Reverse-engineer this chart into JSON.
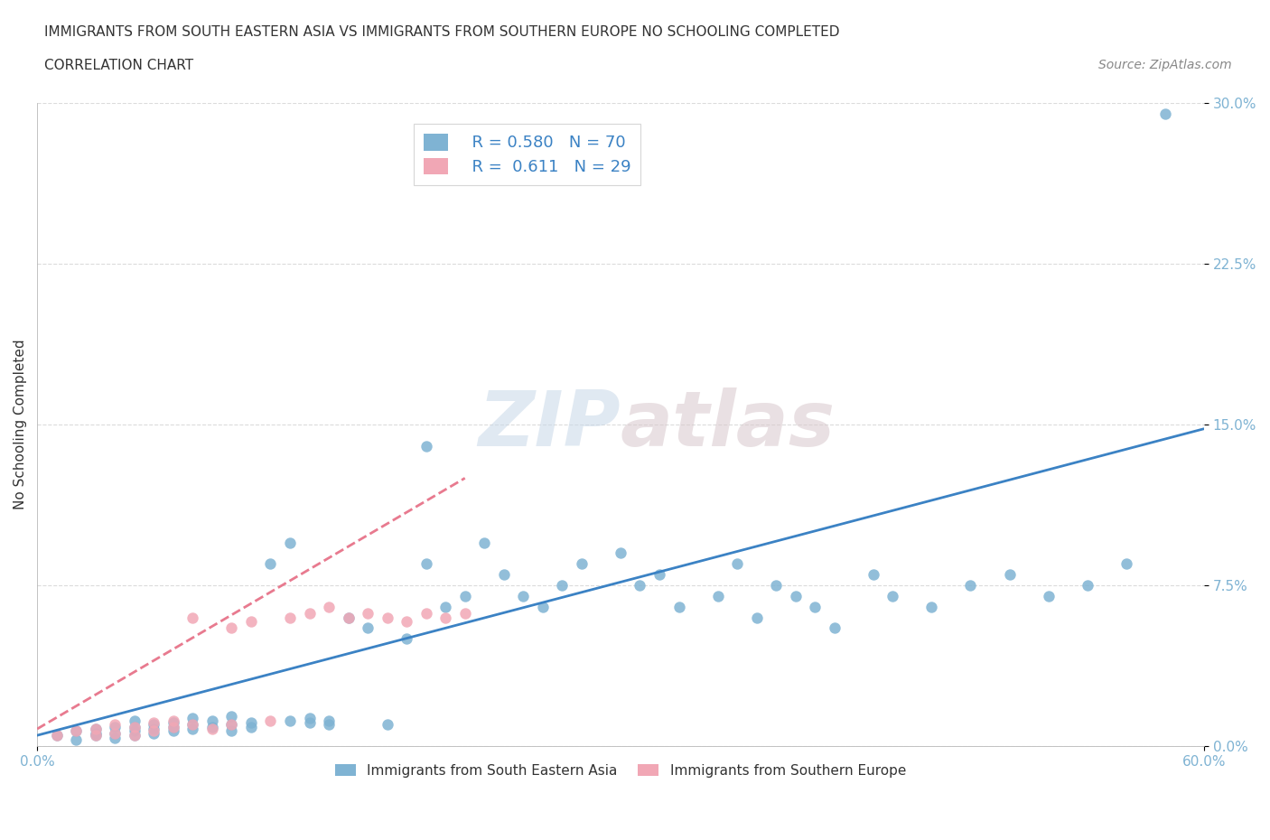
{
  "title_line1": "IMMIGRANTS FROM SOUTH EASTERN ASIA VS IMMIGRANTS FROM SOUTHERN EUROPE NO SCHOOLING COMPLETED",
  "title_line2": "CORRELATION CHART",
  "source_text": "Source: ZipAtlas.com",
  "xlabel": "",
  "ylabel": "No Schooling Completed",
  "xlim": [
    0.0,
    0.6
  ],
  "ylim": [
    0.0,
    0.3
  ],
  "xtick_labels": [
    "0.0%",
    "60.0%"
  ],
  "ytick_labels": [
    "0.0%",
    "7.5%",
    "15.0%",
    "22.5%",
    "30.0%"
  ],
  "ytick_values": [
    0.0,
    0.075,
    0.15,
    0.225,
    0.3
  ],
  "xtick_values": [
    0.0,
    0.6
  ],
  "R1": 0.58,
  "N1": 70,
  "R2": 0.611,
  "N2": 29,
  "color_sea": "#7FB3D3",
  "color_se": "#F1A7B5",
  "color_line1": "#3B82C4",
  "color_line2": "#E87A8F",
  "legend_label1": "Immigrants from South Eastern Asia",
  "legend_label2": "Immigrants from Southern Europe",
  "watermark_zip": "ZIP",
  "watermark_atlas": "atlas",
  "background_color": "#FFFFFF",
  "grid_color": "#CCCCCC",
  "title_color": "#333333",
  "axis_color": "#AAAAAA",
  "tick_label_color": "#7FB3D3",
  "sea_scatter_x": [
    0.01,
    0.02,
    0.02,
    0.03,
    0.03,
    0.03,
    0.04,
    0.04,
    0.04,
    0.05,
    0.05,
    0.05,
    0.05,
    0.06,
    0.06,
    0.06,
    0.07,
    0.07,
    0.07,
    0.08,
    0.08,
    0.08,
    0.09,
    0.09,
    0.1,
    0.1,
    0.1,
    0.11,
    0.11,
    0.12,
    0.13,
    0.13,
    0.14,
    0.14,
    0.15,
    0.15,
    0.16,
    0.17,
    0.18,
    0.19,
    0.2,
    0.2,
    0.21,
    0.22,
    0.23,
    0.24,
    0.25,
    0.26,
    0.27,
    0.28,
    0.3,
    0.31,
    0.32,
    0.33,
    0.35,
    0.36,
    0.37,
    0.38,
    0.39,
    0.4,
    0.41,
    0.43,
    0.44,
    0.46,
    0.48,
    0.5,
    0.52,
    0.54,
    0.56,
    0.58
  ],
  "sea_scatter_y": [
    0.005,
    0.003,
    0.007,
    0.005,
    0.006,
    0.008,
    0.004,
    0.006,
    0.009,
    0.005,
    0.007,
    0.009,
    0.012,
    0.006,
    0.008,
    0.01,
    0.007,
    0.009,
    0.011,
    0.008,
    0.01,
    0.013,
    0.009,
    0.012,
    0.007,
    0.01,
    0.014,
    0.009,
    0.011,
    0.085,
    0.012,
    0.095,
    0.011,
    0.013,
    0.01,
    0.012,
    0.06,
    0.055,
    0.01,
    0.05,
    0.085,
    0.14,
    0.065,
    0.07,
    0.095,
    0.08,
    0.07,
    0.065,
    0.075,
    0.085,
    0.09,
    0.075,
    0.08,
    0.065,
    0.07,
    0.085,
    0.06,
    0.075,
    0.07,
    0.065,
    0.055,
    0.08,
    0.07,
    0.065,
    0.075,
    0.08,
    0.07,
    0.075,
    0.085,
    0.295
  ],
  "se_scatter_x": [
    0.01,
    0.02,
    0.03,
    0.03,
    0.04,
    0.04,
    0.05,
    0.05,
    0.06,
    0.06,
    0.07,
    0.07,
    0.08,
    0.08,
    0.09,
    0.1,
    0.1,
    0.11,
    0.12,
    0.13,
    0.14,
    0.15,
    0.16,
    0.17,
    0.18,
    0.19,
    0.2,
    0.21,
    0.22
  ],
  "se_scatter_y": [
    0.005,
    0.007,
    0.005,
    0.008,
    0.006,
    0.01,
    0.005,
    0.009,
    0.007,
    0.011,
    0.009,
    0.012,
    0.01,
    0.06,
    0.008,
    0.055,
    0.01,
    0.058,
    0.012,
    0.06,
    0.062,
    0.065,
    0.06,
    0.062,
    0.06,
    0.058,
    0.062,
    0.06,
    0.062
  ],
  "line1_x": [
    0.0,
    0.6
  ],
  "line1_y": [
    0.005,
    0.148
  ],
  "line2_x": [
    0.0,
    0.22
  ],
  "line2_y": [
    0.008,
    0.125
  ]
}
